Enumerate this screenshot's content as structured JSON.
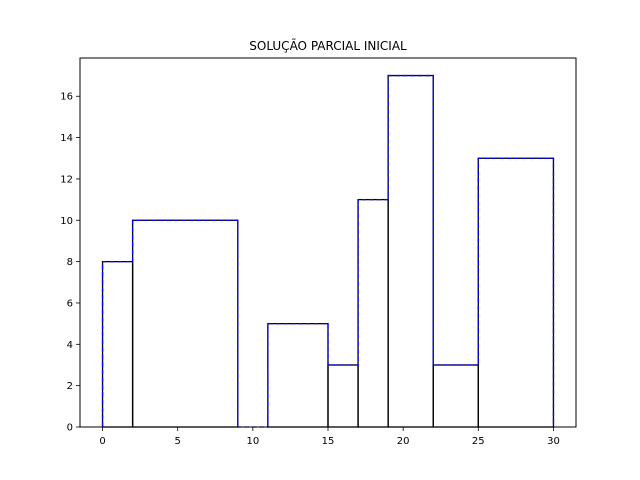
{
  "chart_data": {
    "type": "bar",
    "title": "SOLUÇÃO PARCIAL INICIAL",
    "xlabel": "",
    "ylabel": "",
    "xlim": [
      -1.5,
      31.5
    ],
    "ylim": [
      0,
      17.85
    ],
    "xticks": [
      0,
      5,
      10,
      15,
      20,
      25,
      30
    ],
    "yticks": [
      0,
      2,
      4,
      6,
      8,
      10,
      12,
      14,
      16
    ],
    "grid": false,
    "legend": "none",
    "bars": [
      {
        "x0": 0,
        "x1": 2,
        "height": 8
      },
      {
        "x0": 2,
        "x1": 9,
        "height": 10
      },
      {
        "x0": 9,
        "x1": 11,
        "height": 0
      },
      {
        "x0": 11,
        "x1": 15,
        "height": 5
      },
      {
        "x0": 15,
        "x1": 17,
        "height": 3
      },
      {
        "x0": 17,
        "x1": 19,
        "height": 11
      },
      {
        "x0": 19,
        "x1": 22,
        "height": 17
      },
      {
        "x0": 22,
        "x1": 25,
        "height": 3
      },
      {
        "x0": 25,
        "x1": 30,
        "height": 13
      }
    ],
    "outline": {
      "style": "dashed",
      "color": "#0000ff",
      "points": [
        [
          0,
          0
        ],
        [
          0,
          8
        ],
        [
          2,
          8
        ],
        [
          2,
          10
        ],
        [
          9,
          10
        ],
        [
          9,
          0
        ],
        [
          11,
          0
        ],
        [
          11,
          5
        ],
        [
          15,
          5
        ],
        [
          15,
          3
        ],
        [
          17,
          3
        ],
        [
          17,
          11
        ],
        [
          19,
          11
        ],
        [
          19,
          17
        ],
        [
          22,
          17
        ],
        [
          22,
          3
        ],
        [
          25,
          3
        ],
        [
          25,
          13
        ],
        [
          30,
          13
        ],
        [
          30,
          0
        ]
      ]
    },
    "colors": {
      "bar_edge": "#000000",
      "outline": "#0000ff"
    }
  }
}
